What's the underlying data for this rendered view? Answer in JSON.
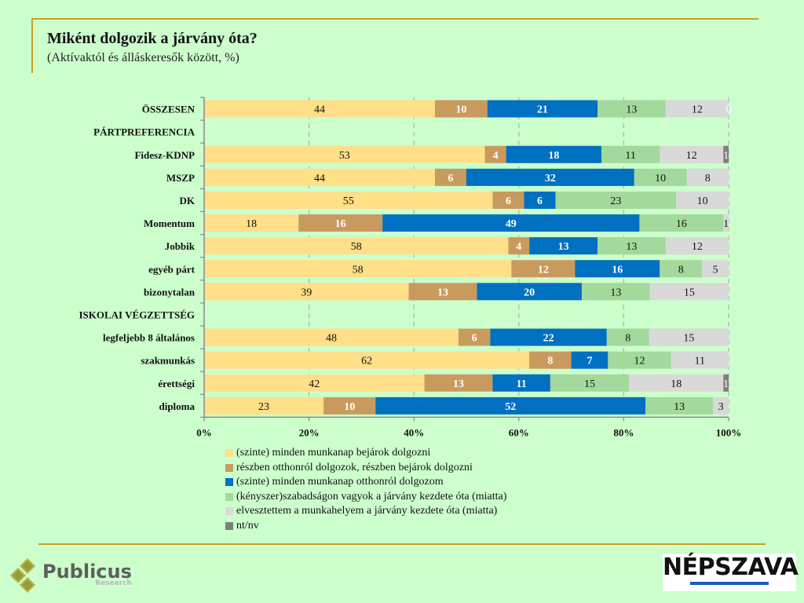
{
  "header": {
    "title": "Miként dolgozik a járvány óta?",
    "subtitle": "(Aktívaktól és álláskeresők között, %)"
  },
  "chart_data": {
    "type": "bar",
    "orientation": "horizontal",
    "stacked": "percent",
    "title": "Miként dolgozik a járvány óta?",
    "subtitle": "(Aktívaktól és álláskeresők között, %)",
    "xlabel": "",
    "ylabel": "",
    "xlim": [
      0,
      100
    ],
    "x_ticks": [
      "0%",
      "20%",
      "40%",
      "60%",
      "80%",
      "100%"
    ],
    "grid": "vertical dashed",
    "legend_position": "bottom",
    "categories": [
      {
        "label": "ÖSSZESEN",
        "header": true,
        "has_data": true
      },
      {
        "label": "PÁRTPREFERENCIA",
        "header": true,
        "has_data": false
      },
      {
        "label": "Fidesz-KDNP",
        "header": false,
        "has_data": true
      },
      {
        "label": "MSZP",
        "header": false,
        "has_data": true
      },
      {
        "label": "DK",
        "header": false,
        "has_data": true
      },
      {
        "label": "Momentum",
        "header": false,
        "has_data": true
      },
      {
        "label": "Jobbik",
        "header": false,
        "has_data": true
      },
      {
        "label": "egyéb párt",
        "header": false,
        "has_data": true
      },
      {
        "label": "bizonytalan",
        "header": false,
        "has_data": true
      },
      {
        "label": "ISKOLAI VÉGZETTSÉG",
        "header": true,
        "has_data": false
      },
      {
        "label": "legfeljebb 8 általános",
        "header": false,
        "has_data": true
      },
      {
        "label": "szakmunkás",
        "header": false,
        "has_data": true
      },
      {
        "label": "érettségi",
        "header": false,
        "has_data": true
      },
      {
        "label": "diploma",
        "header": false,
        "has_data": true
      }
    ],
    "series": [
      {
        "name": "(szinte) minden munkanap bejárok dolgozni",
        "color": "#ffdf88",
        "label_color": "#111111",
        "label_bold": false,
        "values": [
          44,
          null,
          53,
          44,
          55,
          18,
          58,
          58,
          39,
          null,
          48,
          62,
          42,
          23
        ]
      },
      {
        "name": "részben otthonról dolgozok, részben bejárok dolgozni",
        "color": "#c99a5e",
        "label_color": "#ffffff",
        "label_bold": true,
        "values": [
          10,
          null,
          4,
          6,
          6,
          16,
          4,
          12,
          13,
          null,
          6,
          8,
          13,
          10
        ]
      },
      {
        "name": "(szinte) minden munkanap otthonról dolgozom",
        "color": "#0070c0",
        "label_color": "#ffffff",
        "label_bold": true,
        "values": [
          21,
          null,
          18,
          32,
          6,
          49,
          13,
          16,
          20,
          null,
          22,
          7,
          11,
          52
        ]
      },
      {
        "name": "(kényszer)szabadságon vagyok a járvány kezdete óta (miatta)",
        "color": "#a3d99c",
        "label_color": "#111111",
        "label_bold": false,
        "values": [
          13,
          null,
          11,
          10,
          23,
          16,
          13,
          8,
          13,
          null,
          8,
          12,
          15,
          13
        ]
      },
      {
        "name": "elvesztettem a munkahelyem a járvány kezdete óta (miatta)",
        "color": "#d9d9d9",
        "label_color": "#111111",
        "label_bold": false,
        "values": [
          12,
          null,
          12,
          8,
          10,
          1,
          12,
          5,
          15,
          null,
          15,
          11,
          18,
          3
        ]
      },
      {
        "name": "nt/nv",
        "color": "#7f7f7f",
        "label_color": "#ffffff",
        "label_bold": false,
        "values": [
          0,
          null,
          1,
          0,
          0,
          0,
          0,
          0,
          0,
          null,
          0,
          0,
          1,
          0
        ]
      }
    ],
    "show_zero_labels": [
      true,
      false,
      false,
      false,
      false,
      false,
      false,
      false,
      false,
      false,
      false,
      false,
      false,
      false
    ]
  },
  "legend": {
    "items": [
      {
        "label": "(szinte) minden munkanap bejárok dolgozni",
        "color": "#ffdf88"
      },
      {
        "label": "részben otthonról dolgozok, részben bejárok dolgozni",
        "color": "#c99a5e"
      },
      {
        "label": "(szinte) minden munkanap otthonról dolgozom",
        "color": "#0070c0"
      },
      {
        "label": "(kényszer)szabadságon vagyok a járvány kezdete óta (miatta)",
        "color": "#a3d99c"
      },
      {
        "label": "elvesztettem a munkahelyem a járvány kezdete óta (miatta)",
        "color": "#d9d9d9"
      },
      {
        "label": "nt/nv",
        "color": "#7f7f7f"
      }
    ]
  },
  "footer": {
    "publicus_name": "Publicus",
    "publicus_sub": "Research",
    "nepszava": "NÉPSZAVA"
  }
}
